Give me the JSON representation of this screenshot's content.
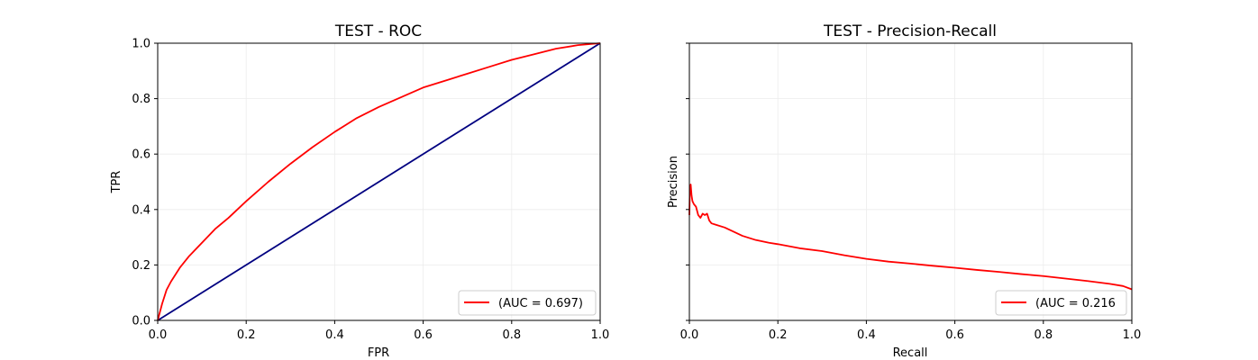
{
  "chart_data": [
    {
      "type": "line",
      "title": "TEST - ROC",
      "xlabel": "FPR",
      "ylabel": "TPR",
      "xlim": [
        0,
        1
      ],
      "ylim": [
        0,
        1
      ],
      "grid": true,
      "legend_location": "bottom-right",
      "x_ticks": [
        0.0,
        0.2,
        0.4,
        0.6,
        0.8,
        1.0
      ],
      "y_ticks": [
        0.0,
        0.2,
        0.4,
        0.6,
        0.8,
        1.0
      ],
      "x_tick_labels": [
        "0.0",
        "0.2",
        "0.4",
        "0.6",
        "0.8",
        "1.0"
      ],
      "y_tick_labels": [
        "0.0",
        "0.2",
        "0.4",
        "0.6",
        "0.8",
        "1.0"
      ],
      "series": [
        {
          "name": "(AUC = 0.697)",
          "color": "#ff0000",
          "x": [
            0.0,
            0.005,
            0.01,
            0.02,
            0.03,
            0.05,
            0.07,
            0.1,
            0.13,
            0.16,
            0.2,
            0.25,
            0.3,
            0.35,
            0.4,
            0.45,
            0.5,
            0.55,
            0.6,
            0.65,
            0.7,
            0.75,
            0.8,
            0.85,
            0.9,
            0.95,
            1.0
          ],
          "y": [
            0.0,
            0.03,
            0.06,
            0.11,
            0.14,
            0.19,
            0.23,
            0.28,
            0.33,
            0.37,
            0.43,
            0.5,
            0.565,
            0.625,
            0.68,
            0.73,
            0.77,
            0.805,
            0.84,
            0.865,
            0.89,
            0.915,
            0.94,
            0.96,
            0.98,
            0.993,
            1.0
          ]
        },
        {
          "color": "#000080",
          "x": [
            0.0,
            1.0
          ],
          "y": [
            0.0,
            1.0
          ]
        }
      ]
    },
    {
      "type": "line",
      "title": "TEST - Precision-Recall",
      "xlabel": "Recall",
      "ylabel": "Precision",
      "xlim": [
        0,
        1
      ],
      "ylim": [
        0,
        1
      ],
      "grid": true,
      "legend_location": "bottom-right",
      "x_ticks": [
        0.0,
        0.2,
        0.4,
        0.6,
        0.8,
        1.0
      ],
      "y_ticks": [
        0.0,
        0.2,
        0.4,
        0.6,
        0.8,
        1.0
      ],
      "x_tick_labels": [
        "0.0",
        "0.2",
        "0.4",
        "0.6",
        "0.8",
        "1.0"
      ],
      "series": [
        {
          "name": "(AUC = 0.216",
          "color": "#ff0000",
          "x": [
            0.0,
            0.001,
            0.003,
            0.005,
            0.007,
            0.01,
            0.015,
            0.02,
            0.025,
            0.03,
            0.035,
            0.04,
            0.045,
            0.05,
            0.06,
            0.08,
            0.1,
            0.12,
            0.15,
            0.18,
            0.2,
            0.25,
            0.3,
            0.35,
            0.4,
            0.45,
            0.5,
            0.55,
            0.6,
            0.65,
            0.7,
            0.75,
            0.8,
            0.85,
            0.9,
            0.95,
            0.98,
            1.0
          ],
          "y": [
            0.38,
            0.46,
            0.49,
            0.45,
            0.43,
            0.42,
            0.41,
            0.38,
            0.37,
            0.385,
            0.38,
            0.385,
            0.36,
            0.35,
            0.345,
            0.335,
            0.32,
            0.305,
            0.29,
            0.28,
            0.275,
            0.26,
            0.25,
            0.235,
            0.222,
            0.212,
            0.205,
            0.197,
            0.19,
            0.182,
            0.175,
            0.167,
            0.16,
            0.151,
            0.142,
            0.132,
            0.124,
            0.112
          ]
        }
      ]
    }
  ]
}
